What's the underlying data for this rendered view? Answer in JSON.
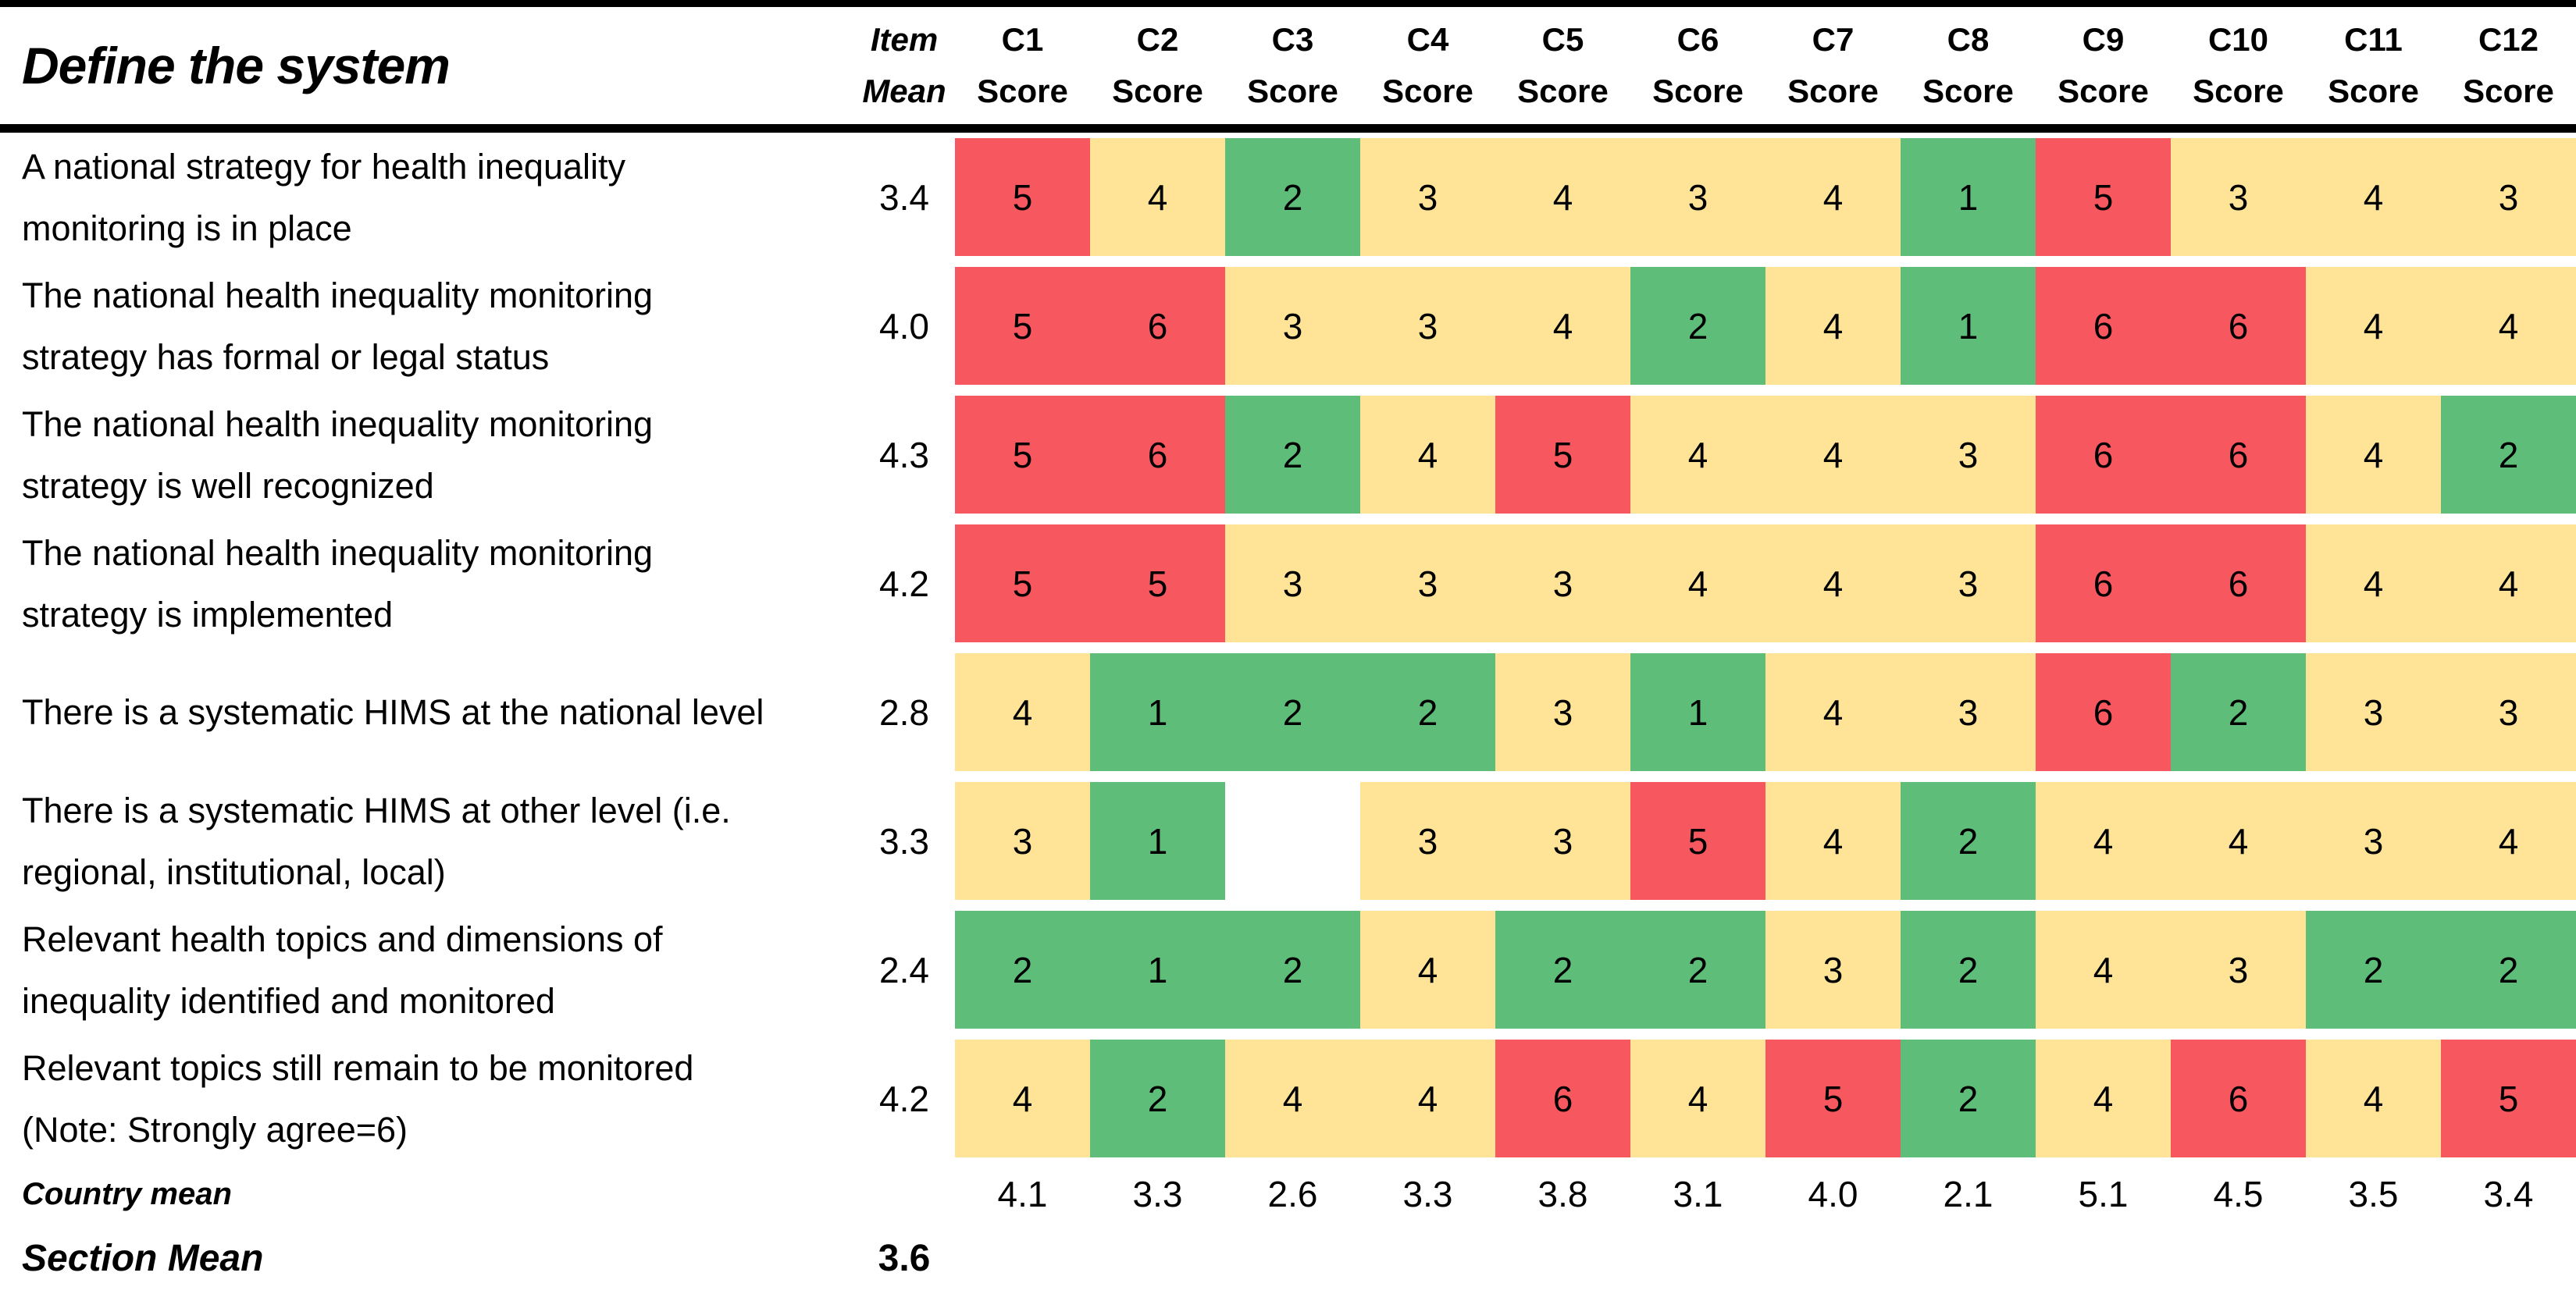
{
  "chart_data": {
    "type": "heatmap",
    "title": "Define the system",
    "item_mean_header": {
      "line1": "Item",
      "line2": "Mean"
    },
    "column_headers": [
      {
        "id": "C1",
        "sub": "Score"
      },
      {
        "id": "C2",
        "sub": "Score"
      },
      {
        "id": "C3",
        "sub": "Score"
      },
      {
        "id": "C4",
        "sub": "Score"
      },
      {
        "id": "C5",
        "sub": "Score"
      },
      {
        "id": "C6",
        "sub": "Score"
      },
      {
        "id": "C7",
        "sub": "Score"
      },
      {
        "id": "C8",
        "sub": "Score"
      },
      {
        "id": "C9",
        "sub": "Score"
      },
      {
        "id": "C10",
        "sub": "Score"
      },
      {
        "id": "C11",
        "sub": "Score"
      },
      {
        "id": "C12",
        "sub": "Score"
      }
    ],
    "rows": [
      {
        "label": "A national strategy for health inequality monitoring is in place",
        "item_mean": "3.4",
        "scores": [
          5,
          4,
          2,
          3,
          4,
          3,
          4,
          1,
          5,
          3,
          4,
          3
        ]
      },
      {
        "label": "The national health inequality monitoring strategy has formal or legal status",
        "item_mean": "4.0",
        "scores": [
          5,
          6,
          3,
          3,
          4,
          2,
          4,
          1,
          6,
          6,
          4,
          4
        ]
      },
      {
        "label": "The national health inequality monitoring strategy is well recognized",
        "item_mean": "4.3",
        "scores": [
          5,
          6,
          2,
          4,
          5,
          4,
          4,
          3,
          6,
          6,
          4,
          2
        ]
      },
      {
        "label": "The national health inequality monitoring strategy is implemented",
        "item_mean": "4.2",
        "scores": [
          5,
          5,
          3,
          3,
          3,
          4,
          4,
          3,
          6,
          6,
          4,
          4
        ]
      },
      {
        "label": "There is a systematic HIMS at the national level",
        "item_mean": "2.8",
        "scores": [
          4,
          1,
          2,
          2,
          3,
          1,
          4,
          3,
          6,
          2,
          3,
          3
        ]
      },
      {
        "label": "There is a systematic HIMS at other level (i.e. regional, institutional, local)",
        "item_mean": "3.3",
        "scores": [
          3,
          1,
          null,
          3,
          3,
          5,
          4,
          2,
          4,
          4,
          3,
          4
        ]
      },
      {
        "label": "Relevant health topics and dimensions of inequality identified and monitored",
        "item_mean": "2.4",
        "scores": [
          2,
          1,
          2,
          4,
          2,
          2,
          3,
          2,
          4,
          3,
          2,
          2
        ]
      },
      {
        "label": "Relevant topics still remain to be monitored (Note: Strongly agree=6)",
        "item_mean": "4.2",
        "scores": [
          4,
          2,
          4,
          4,
          6,
          4,
          5,
          2,
          4,
          6,
          4,
          5
        ]
      }
    ],
    "country_mean": {
      "label": "Country mean",
      "values": [
        "4.1",
        "3.3",
        "2.6",
        "3.3",
        "3.8",
        "3.1",
        "4.0",
        "2.1",
        "5.1",
        "4.5",
        "3.5",
        "3.4"
      ]
    },
    "section_mean": {
      "label": "Section Mean",
      "value": "3.6"
    },
    "legend_rule": "scores 1-2 green, 3-4 yellow, 5-6 red, missing cell blank white",
    "colors": {
      "green": "#5DBD79",
      "yellow": "#FFE396",
      "red": "#F7575E",
      "missing": "#FFFFFF"
    }
  }
}
